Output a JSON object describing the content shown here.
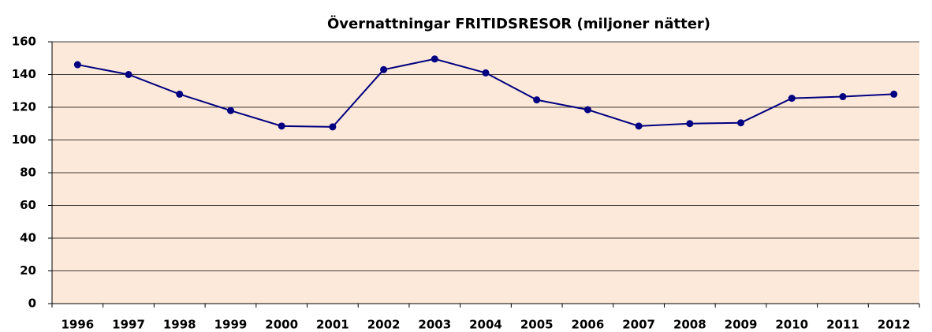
{
  "chart_data": {
    "type": "line",
    "title": "Övernattningar  FRITIDSRESOR (miljoner nätter)",
    "categories": [
      "1996",
      "1997",
      "1998",
      "1999",
      "2000",
      "2001",
      "2002",
      "2003",
      "2004",
      "2005",
      "2006",
      "2007",
      "2008",
      "2009",
      "2010",
      "2011",
      "2012"
    ],
    "series": [
      {
        "name": "Övernattningar",
        "color": "#000080",
        "values": [
          146,
          140,
          128,
          118,
          108.5,
          108,
          143,
          149.5,
          141,
          124.5,
          118.5,
          108.5,
          110,
          110.5,
          125.5,
          126.5,
          128
        ]
      }
    ],
    "ylim": [
      0,
      160
    ],
    "yticks": [
      0,
      20,
      40,
      60,
      80,
      100,
      120,
      140,
      160
    ],
    "grid": true
  }
}
